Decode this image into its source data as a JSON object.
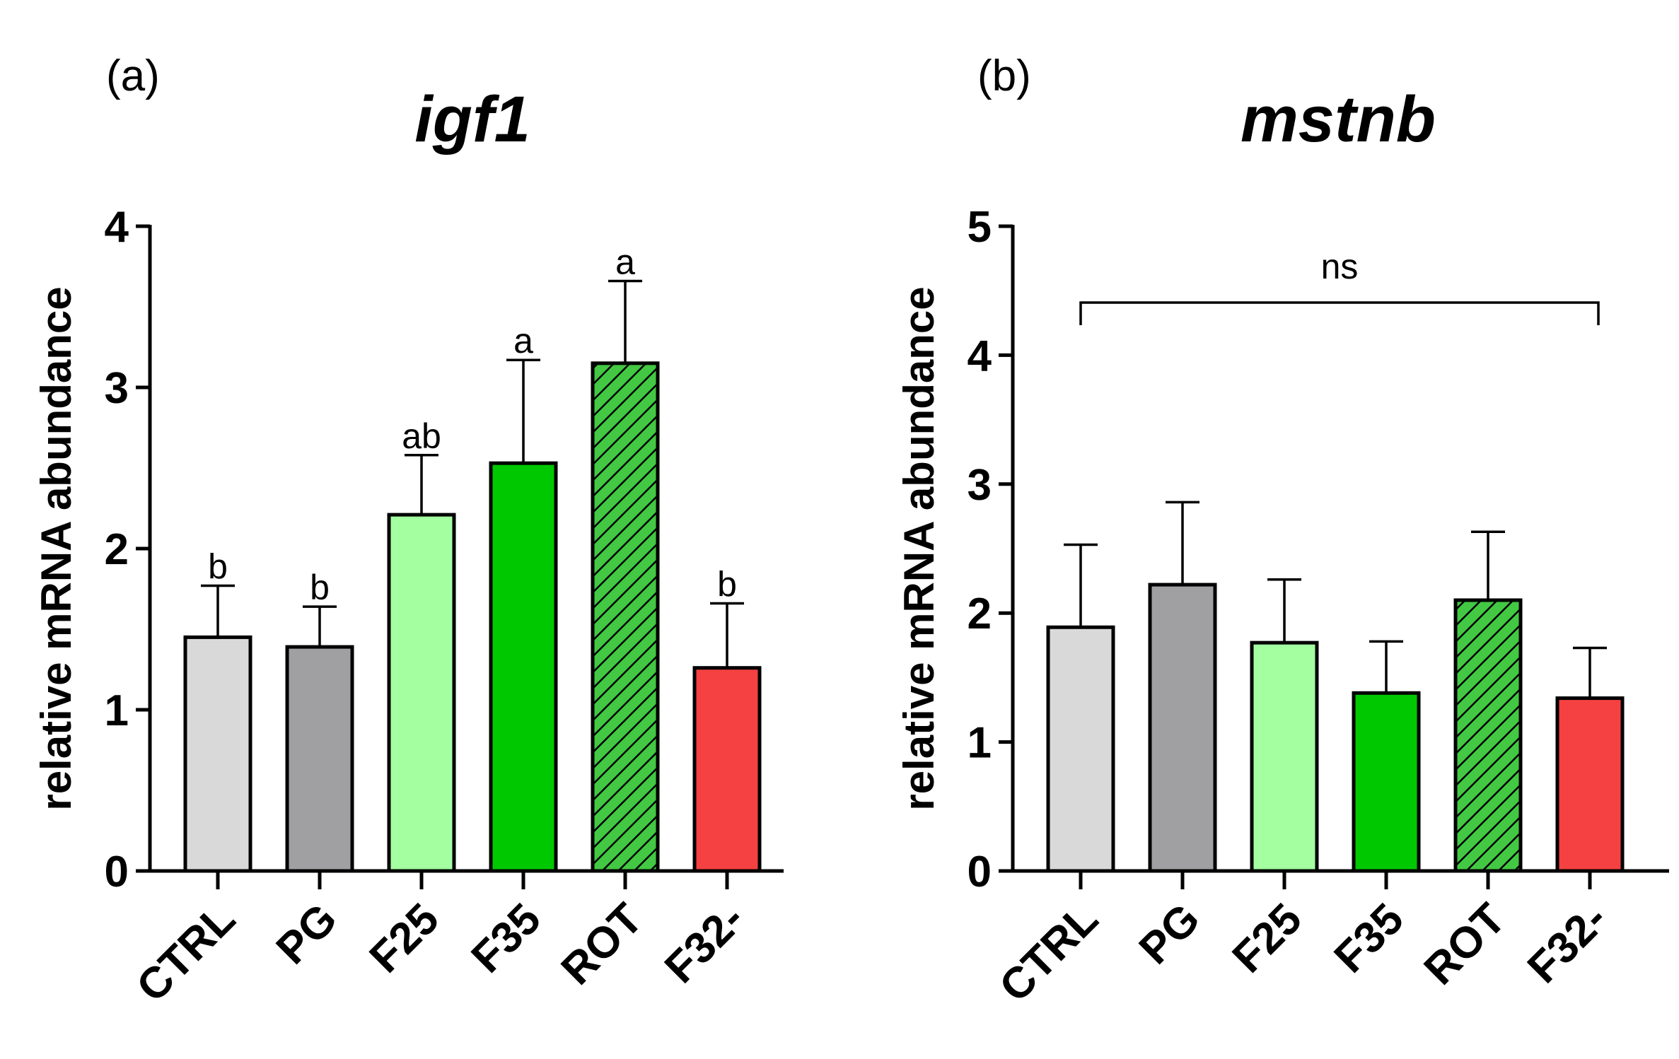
{
  "chart_data": [
    {
      "type": "bar",
      "panel_label": "(a)",
      "title": "igf1",
      "ylabel": "relative mRNA abundance",
      "xlabel": "",
      "ylim": [
        0,
        4
      ],
      "yticks": [
        "0",
        "1",
        "2",
        "3",
        "4"
      ],
      "categories": [
        "CTRL",
        "PG",
        "F25",
        "F35",
        "ROT",
        "F32-"
      ],
      "values": [
        1.45,
        1.39,
        2.21,
        2.53,
        3.15,
        1.26
      ],
      "errors": [
        0.32,
        0.25,
        0.37,
        0.64,
        0.51,
        0.4
      ],
      "significance": [
        "b",
        "b",
        "ab",
        "a",
        "a",
        "b"
      ],
      "colors": [
        "#d9d9d9",
        "#a0a0a2",
        "#a3ffa0",
        "#00c800",
        "#43c843",
        "#f54141"
      ],
      "hatched": [
        false,
        false,
        false,
        false,
        true,
        false
      ]
    },
    {
      "type": "bar",
      "panel_label": "(b)",
      "title": "mstnb",
      "ylabel": "relative mRNA abundance",
      "xlabel": "",
      "ylim": [
        0,
        5
      ],
      "yticks": [
        "0",
        "1",
        "2",
        "3",
        "4",
        "5"
      ],
      "categories": [
        "CTRL",
        "PG",
        "F25",
        "F35",
        "ROT",
        "F32-"
      ],
      "values": [
        1.89,
        2.22,
        1.77,
        1.38,
        2.1,
        1.34
      ],
      "errors": [
        0.64,
        0.64,
        0.49,
        0.4,
        0.53,
        0.39
      ],
      "bracket_label": "ns",
      "colors": [
        "#d9d9d9",
        "#a0a0a2",
        "#a3ffa0",
        "#00c800",
        "#43c843",
        "#f54141"
      ],
      "hatched": [
        false,
        false,
        false,
        false,
        true,
        false
      ]
    }
  ]
}
